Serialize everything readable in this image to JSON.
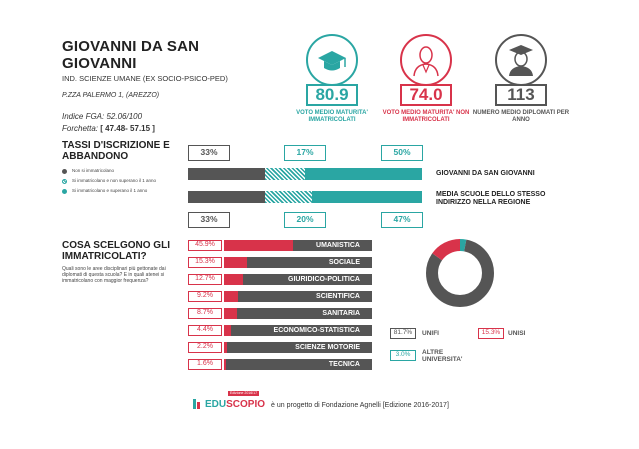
{
  "school": {
    "name": "GIOVANNI DA SAN GIOVANNI",
    "type": "IND. SCIENZE UMANE (EX SOCIO-PSICO-PED)",
    "address": "P.ZZA PALERMO 1, (AREZZO)",
    "fga_label": "Indice FGA:",
    "fga_value": "52.06/100",
    "forchetta_label": "Forchetta:",
    "forchetta_value": "[ 47.48- 57.15 ]"
  },
  "metrics": [
    {
      "value": "80.9",
      "label": "VOTO MEDIO MATURITA' IMMATRICOLATI",
      "icon": "graduation-cap-icon",
      "color": "#2aa6a3"
    },
    {
      "value": "74.0",
      "label": "VOTO MEDIO MATURITA' NON IMMATRICOLATI",
      "icon": "person-icon",
      "color": "#d8334a"
    },
    {
      "value": "113",
      "label": "NUMERO MEDIO DIPLOMATI PER ANNO",
      "icon": "graduate-person-icon",
      "color": "#555555"
    }
  ],
  "rates": {
    "title": "TASSI D'ISCRIZIONE E ABBANDONO",
    "legend": [
      {
        "label": "Non si immatricolano",
        "color": "#555555"
      },
      {
        "label": "Si immatricolano e non superano il 1 anno",
        "color": "#2aa6a3"
      },
      {
        "label": "Si immatricolano e superano il 1 anno",
        "color": "#2aa6a3"
      }
    ],
    "school_bar": {
      "label": "GIOVANNI DA SAN GIOVANNI",
      "non_immatricolati": 0.33,
      "non_superano": 0.17,
      "superano": 0.5,
      "pcts": [
        "33%",
        "17%",
        "50%"
      ]
    },
    "region_bar": {
      "label": "MEDIA SCUOLE DELLO STESSO INDIRIZZO NELLA REGIONE",
      "non_immatricolati": 0.33,
      "non_superano": 0.2,
      "superano": 0.47,
      "pcts": [
        "33%",
        "20%",
        "47%"
      ]
    }
  },
  "choices": {
    "title": "COSA SCELGONO GLI IMMATRICOLATI?",
    "question": "Quali sono le aree disciplinari più gettonate dai diplomati di questa scuola? E in quali atenei si immatricolano con maggior frequenza?",
    "areas": [
      {
        "pct": "45.9%",
        "name": "UMANISTICA",
        "value": 45.9
      },
      {
        "pct": "15.3%",
        "name": "SOCIALE",
        "value": 15.3
      },
      {
        "pct": "12.7%",
        "name": "GIURIDICO-POLITICA",
        "value": 12.7
      },
      {
        "pct": "9.2%",
        "name": "SCIENTIFICA",
        "value": 9.2
      },
      {
        "pct": "8.7%",
        "name": "SANITARIA",
        "value": 8.7
      },
      {
        "pct": "4.4%",
        "name": "ECONOMICO-STATISTICA",
        "value": 4.4
      },
      {
        "pct": "2.2%",
        "name": "SCIENZE MOTORIE",
        "value": 2.2
      },
      {
        "pct": "1.6%",
        "name": "TECNICA",
        "value": 1.6
      }
    ],
    "universities": [
      {
        "pct": "81.7%",
        "name": "UNIFI",
        "value": 81.7,
        "color": "#555555"
      },
      {
        "pct": "15.3%",
        "name": "UNISI",
        "value": 15.3,
        "color": "#d8334a"
      },
      {
        "pct": "3.0%",
        "name": "ALTRE UNIVERSITA'",
        "value": 3.0,
        "color": "#2aa6a3"
      }
    ]
  },
  "footer": {
    "brand_edu": "EDU",
    "brand_scopio": "SCOPIO",
    "brand_tag": "Edizione 2016/17",
    "text": "è un progetto di Fondazione Agnelli [Edizione 2016-2017]"
  }
}
